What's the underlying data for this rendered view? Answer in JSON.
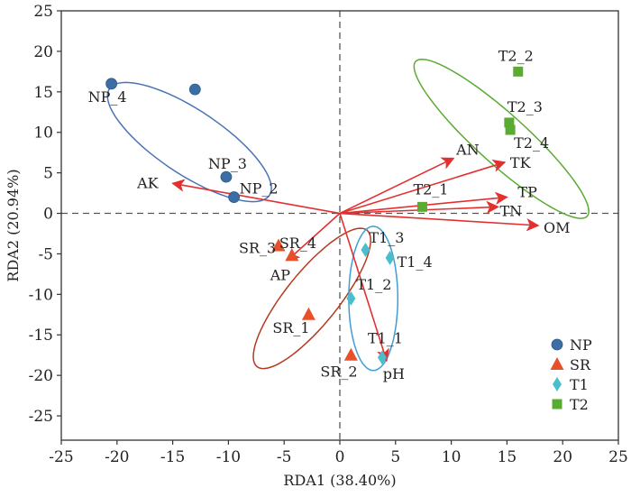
{
  "chart_data": {
    "type": "scatter",
    "title": "",
    "xlabel": "RDA1 (38.40%)",
    "ylabel": "RDA2 (20.94%)",
    "xlim": [
      -25,
      25
    ],
    "ylim": [
      -28,
      25
    ],
    "xticks": [
      -25,
      -20,
      -15,
      -10,
      -5,
      0,
      5,
      10,
      15,
      20,
      25
    ],
    "yticks": [
      -25,
      -20,
      -15,
      -10,
      -5,
      0,
      5,
      10,
      15,
      20,
      25
    ],
    "grid": false,
    "zero_lines": "dashed",
    "legend_position": "bottom-right",
    "series": [
      {
        "name": "NP",
        "marker": "circle",
        "color": "#3a6ea5",
        "points": [
          {
            "label": "NP_4",
            "x": -20.5,
            "y": 16.0
          },
          {
            "label": "",
            "x": -13.0,
            "y": 15.3
          },
          {
            "label": "NP_3",
            "x": -10.2,
            "y": 4.5
          },
          {
            "label": "NP_2",
            "x": -9.5,
            "y": 2.0
          }
        ]
      },
      {
        "name": "SR",
        "marker": "triangle",
        "color": "#e8502a",
        "points": [
          {
            "label": "SR_3",
            "x": -5.5,
            "y": -4.0
          },
          {
            "label": "SR_4",
            "x": -4.3,
            "y": -5.2
          },
          {
            "label": "SR_1",
            "x": -2.8,
            "y": -12.5
          },
          {
            "label": "SR_2",
            "x": 1.0,
            "y": -17.5
          }
        ]
      },
      {
        "name": "T1",
        "marker": "diamond",
        "color": "#4bbecd",
        "points": [
          {
            "label": "T1_3",
            "x": 2.3,
            "y": -4.5
          },
          {
            "label": "T1_4",
            "x": 4.5,
            "y": -5.5
          },
          {
            "label": "T1_2",
            "x": 1.0,
            "y": -10.5
          },
          {
            "label": "T1_1",
            "x": 3.8,
            "y": -17.8
          }
        ]
      },
      {
        "name": "T2",
        "marker": "square",
        "color": "#5aab32",
        "points": [
          {
            "label": "T2_2",
            "x": 16.0,
            "y": 17.5
          },
          {
            "label": "T2_3",
            "x": 15.2,
            "y": 11.2
          },
          {
            "label": "T2_4",
            "x": 15.3,
            "y": 10.3
          },
          {
            "label": "T2_1",
            "x": 7.4,
            "y": 0.8
          }
        ]
      }
    ],
    "ellipses": [
      {
        "group": "NP",
        "color": "#4a74b5",
        "cx": -13.5,
        "cy": 8.8,
        "rx": 9.8,
        "ry": 3.5,
        "angle_deg": -45
      },
      {
        "group": "SR",
        "color": "#b5391f",
        "cx": -2.5,
        "cy": -10.5,
        "rx": 9.8,
        "ry": 2.6,
        "angle_deg": 61
      },
      {
        "group": "T1",
        "color": "#3e9ed4",
        "cx": 3.0,
        "cy": -10.5,
        "rx": 2.2,
        "ry": 8.9,
        "angle_deg": 0
      },
      {
        "group": "T2",
        "color": "#5aab32",
        "cx": 14.5,
        "cy": 9.2,
        "rx": 12.3,
        "ry": 2.6,
        "angle_deg": -52
      }
    ],
    "arrows": [
      {
        "label": "AK",
        "x": -15.0,
        "y": 3.7
      },
      {
        "label": "AP",
        "x": -4.7,
        "y": -5.8
      },
      {
        "label": "pH",
        "x": 4.2,
        "y": -18.2
      },
      {
        "label": "AN",
        "x": 10.2,
        "y": 6.8
      },
      {
        "label": "TK",
        "x": 14.8,
        "y": 6.3
      },
      {
        "label": "TP",
        "x": 15.0,
        "y": 2.0
      },
      {
        "label": "TN",
        "x": 14.2,
        "y": 0.8
      },
      {
        "label": "OM",
        "x": 17.8,
        "y": -1.5
      }
    ],
    "arrow_color": "#e3302f"
  }
}
